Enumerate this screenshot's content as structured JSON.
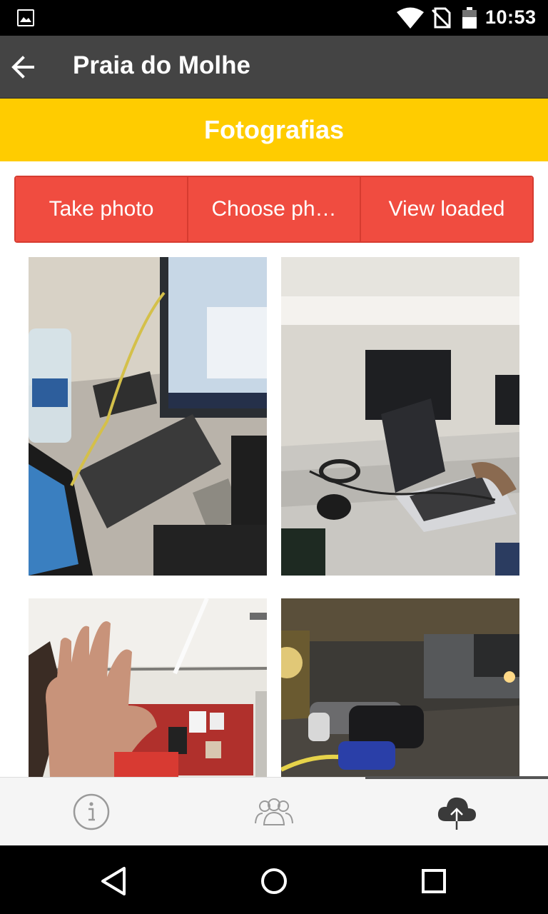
{
  "status_bar": {
    "time": "10:53",
    "icons": [
      "gallery-notification-icon",
      "wifi-icon",
      "no-sim-icon",
      "battery-icon"
    ]
  },
  "app_bar": {
    "title": "Praia do Molhe",
    "back_icon": "arrow-left-icon"
  },
  "section": {
    "title": "Fotografias",
    "background": "#ffcc00"
  },
  "actions": {
    "take_photo": "Take photo",
    "choose_photo": "Choose ph…",
    "view_loaded": "View loaded",
    "color": "#f04c40"
  },
  "photos": [
    {
      "subject": "laptop-and-tablet-on-desk"
    },
    {
      "subject": "laptop-on-office-desk"
    },
    {
      "subject": "raised-hand-in-room"
    },
    {
      "subject": "parking-garage-at-night"
    }
  ],
  "tabs": [
    {
      "icon": "info-icon",
      "active": false
    },
    {
      "icon": "people-icon",
      "active": false
    },
    {
      "icon": "cloud-upload-icon",
      "active": true
    }
  ],
  "nav": [
    "back-triangle-icon",
    "home-circle-icon",
    "recents-square-icon"
  ]
}
